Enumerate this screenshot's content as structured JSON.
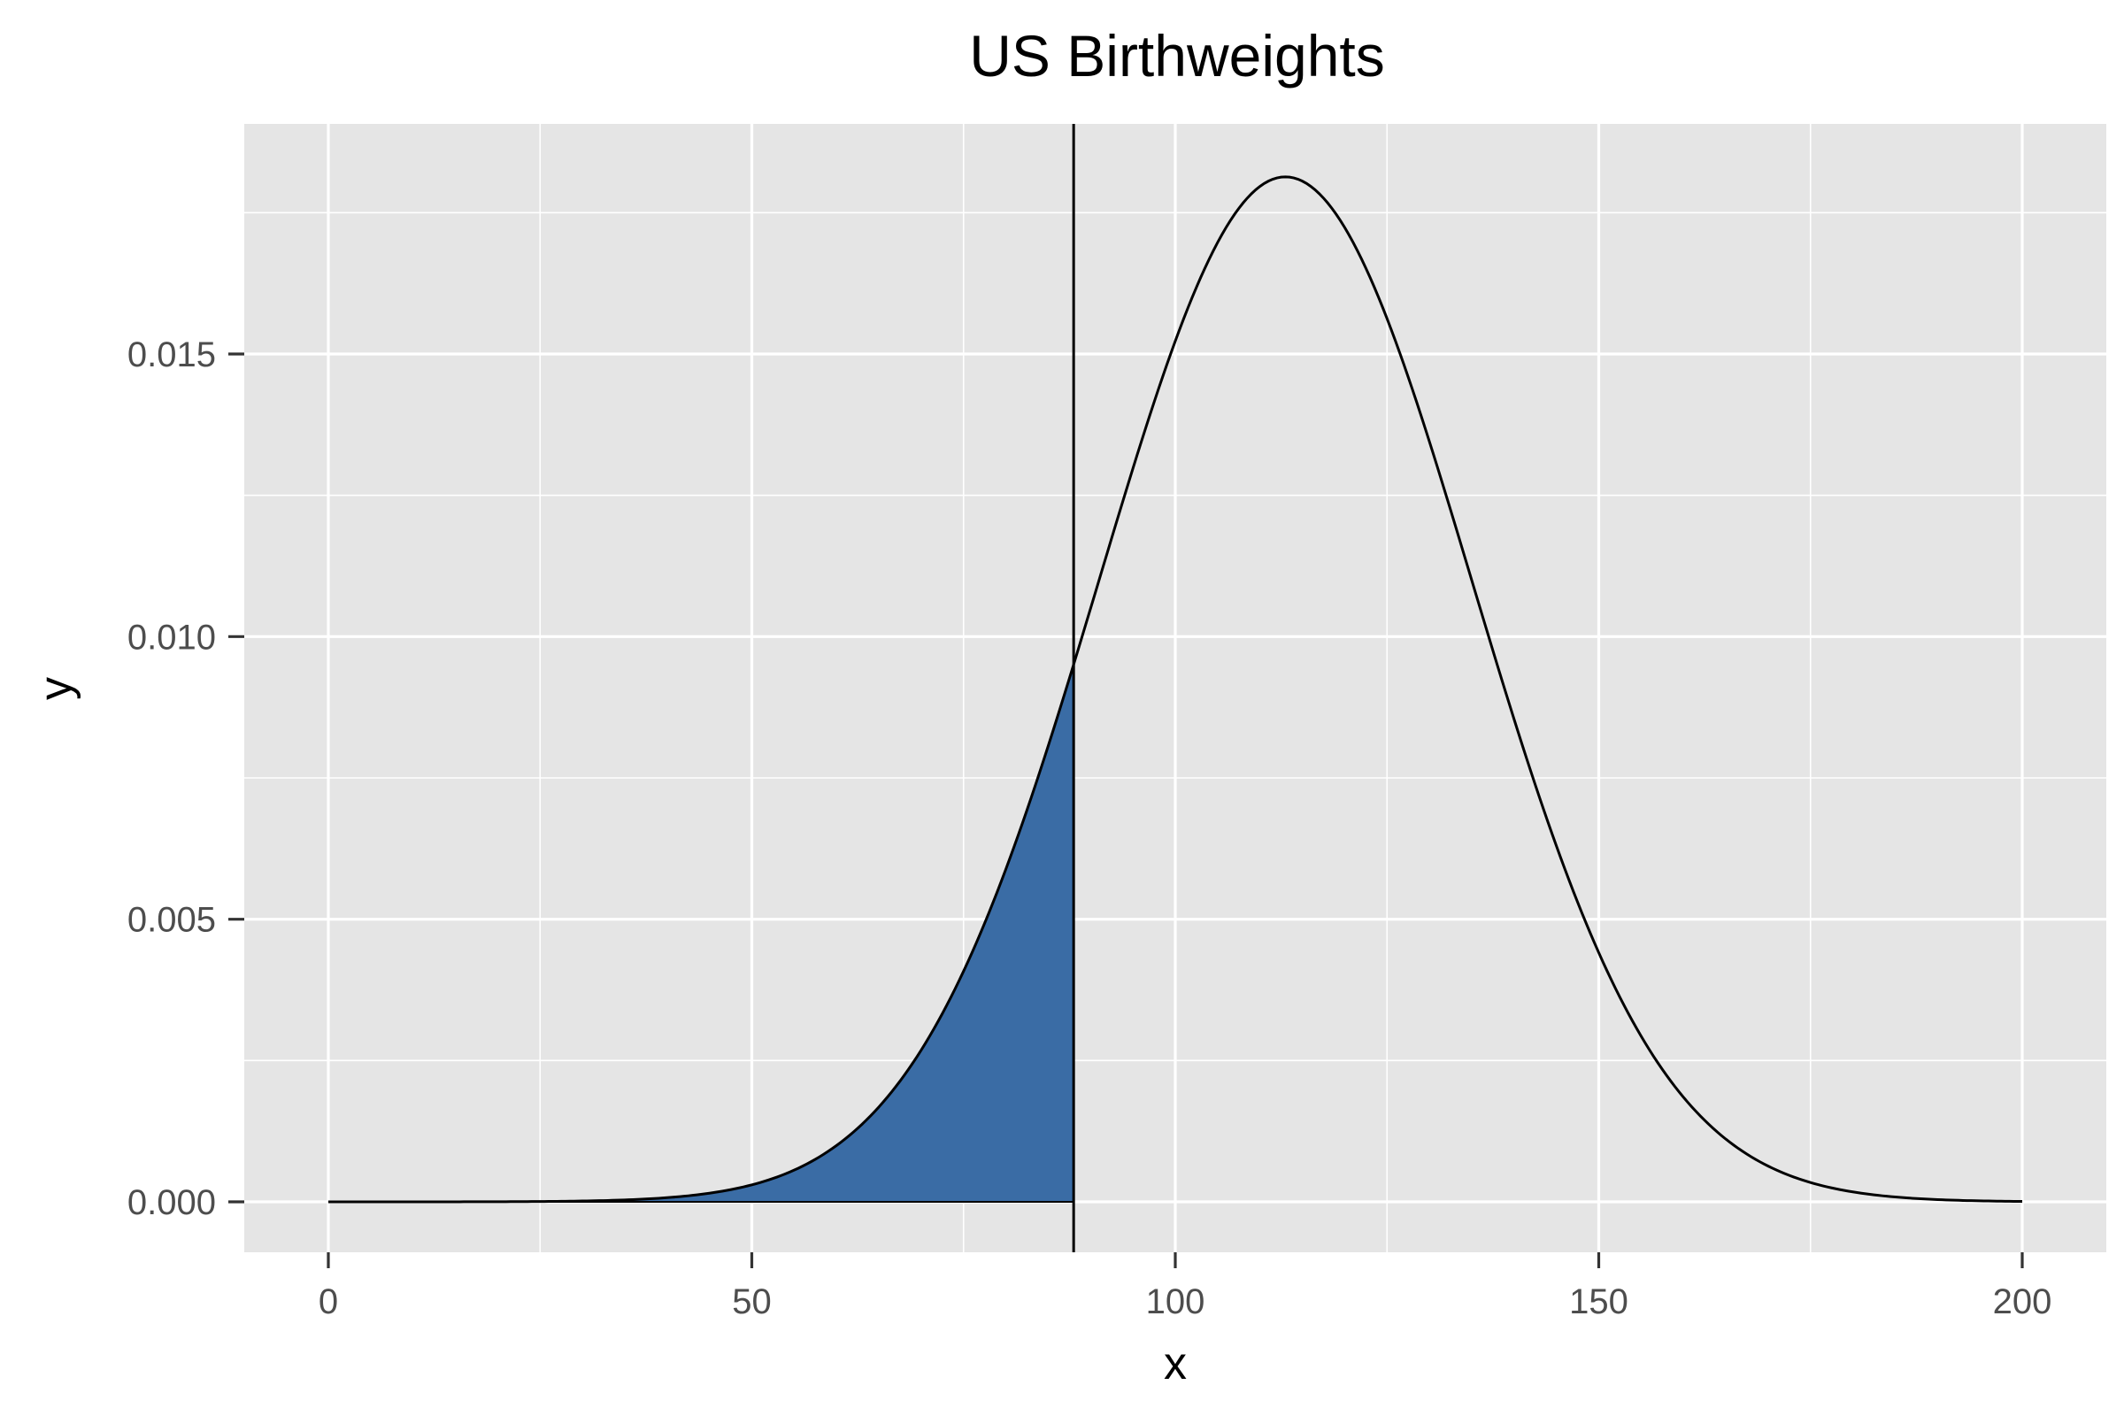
{
  "chart_data": {
    "type": "area",
    "title": "US Birthweights",
    "xlabel": "x",
    "ylabel": "y",
    "xlim": [
      0,
      200
    ],
    "ylim": [
      0,
      0.018
    ],
    "x_ticks": [
      0,
      50,
      100,
      150,
      200
    ],
    "x_tick_labels": [
      "0",
      "50",
      "100",
      "150",
      "200"
    ],
    "y_ticks": [
      0,
      0.005,
      0.01,
      0.015
    ],
    "y_tick_labels": [
      "0.000",
      "0.005",
      "0.010",
      "0.015"
    ],
    "grid": true,
    "background": "#e5e5e5",
    "fill_color": "#3a6ca5",
    "line_color": "#000000",
    "distribution": {
      "name": "normal",
      "mean": 113,
      "sd": 22
    },
    "shaded_region": {
      "from": 0,
      "to": 88
    },
    "vline_x": 88,
    "x": [
      0,
      10,
      20,
      30,
      40,
      50,
      60,
      70,
      80,
      88,
      90,
      100,
      110,
      113,
      120,
      130,
      140,
      150,
      160,
      170,
      180,
      190,
      200
    ],
    "y": [
      0.0,
      0.0,
      1e-05,
      0.00015,
      6e-05,
      0.00029,
      0.001,
      0.00269,
      0.00589,
      0.00947,
      0.00968,
      0.01527,
      0.01799,
      0.01813,
      0.01727,
      0.01277,
      0.00715,
      0.00437,
      0.00186,
      0.00063,
      0.00017,
      4e-05,
      1e-05
    ]
  }
}
